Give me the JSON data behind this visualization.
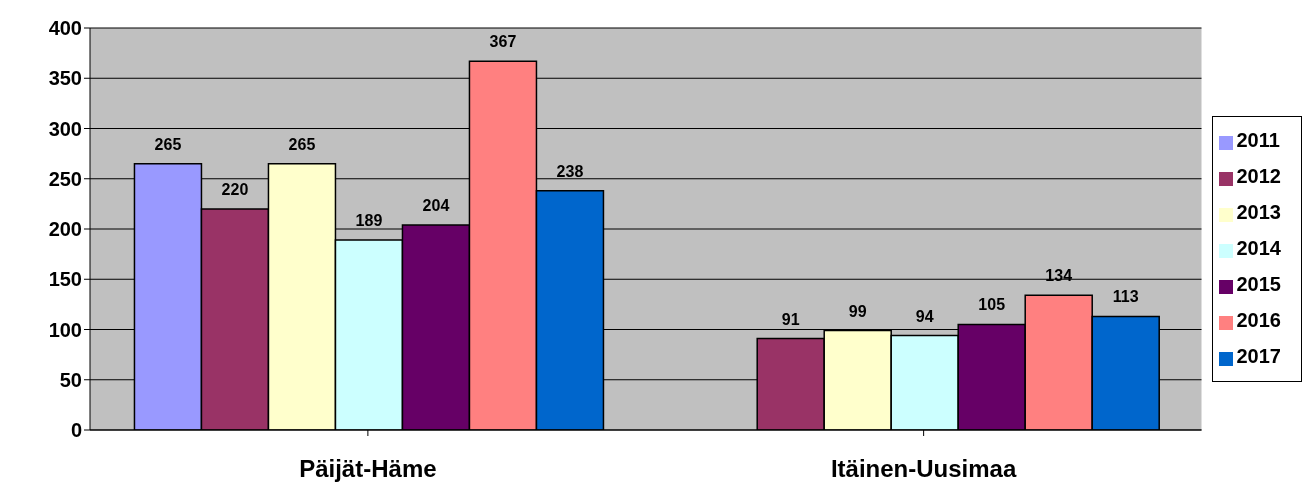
{
  "chart_data": {
    "type": "bar",
    "categories": [
      "Päijät-Häme",
      "Itäinen-Uusimaa"
    ],
    "series": [
      {
        "name": "2011",
        "color": "#9999ff",
        "values": [
          265,
          null
        ]
      },
      {
        "name": "2012",
        "color": "#993366",
        "values": [
          220,
          91
        ]
      },
      {
        "name": "2013",
        "color": "#ffffcc",
        "values": [
          265,
          99
        ]
      },
      {
        "name": "2014",
        "color": "#ccffff",
        "values": [
          189,
          94
        ]
      },
      {
        "name": "2015",
        "color": "#660066",
        "values": [
          204,
          105
        ]
      },
      {
        "name": "2016",
        "color": "#ff8080",
        "values": [
          367,
          134
        ]
      },
      {
        "name": "2017",
        "color": "#0066cc",
        "values": [
          238,
          113
        ]
      }
    ],
    "ylim": [
      0,
      400
    ],
    "yticks": [
      0,
      50,
      100,
      150,
      200,
      250,
      300,
      350,
      400
    ],
    "grid": "y",
    "legend": "right",
    "data_labels": true
  }
}
